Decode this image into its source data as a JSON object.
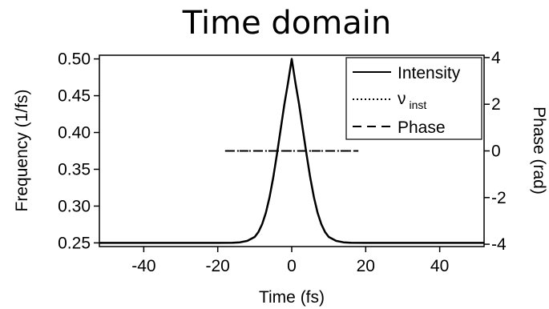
{
  "chart_data": {
    "type": "line",
    "title": "Time domain",
    "xlabel": "Time (fs)",
    "ylabel": "Frequency (1/fs)",
    "y2label": "Phase (rad)",
    "xlim": [
      -52,
      52
    ],
    "ylim": [
      0.245,
      0.505
    ],
    "y2lim": [
      -4.1,
      4.1
    ],
    "xticks": [
      -40,
      -20,
      0,
      20,
      40
    ],
    "yticks": [
      0.25,
      0.3,
      0.35,
      0.4,
      0.45,
      0.5
    ],
    "yticklabels": [
      "0.25",
      "0.30",
      "0.35",
      "0.40",
      "0.45",
      "0.50"
    ],
    "y2ticks": [
      -4,
      -2,
      0,
      2,
      4
    ],
    "grid": false,
    "legend_position": "top-right",
    "legend": [
      {
        "label": "Intensity",
        "label_sub": "",
        "style": "solid"
      },
      {
        "label": "ν",
        "label_sub": "inst",
        "style": "dotted"
      },
      {
        "label": "Phase",
        "label_sub": "",
        "style": "dashed"
      }
    ],
    "series": [
      {
        "name": "Intensity",
        "axis": "left",
        "style": "solid",
        "x": [
          -52,
          -30,
          -20,
          -16,
          -14,
          -12,
          -10,
          -9,
          -8,
          -7,
          -6,
          -5,
          -4,
          -3,
          -2,
          -1,
          0,
          1,
          2,
          3,
          4,
          5,
          6,
          7,
          8,
          9,
          10,
          12,
          14,
          16,
          20,
          30,
          52
        ],
        "y": [
          0.25,
          0.25,
          0.25,
          0.2502,
          0.2508,
          0.2527,
          0.2581,
          0.2649,
          0.2755,
          0.2908,
          0.3119,
          0.3387,
          0.3702,
          0.4045,
          0.4382,
          0.4677,
          0.5,
          0.4677,
          0.4382,
          0.4045,
          0.3702,
          0.3387,
          0.3119,
          0.2908,
          0.2755,
          0.2649,
          0.2581,
          0.2527,
          0.2508,
          0.2502,
          0.25,
          0.25,
          0.25
        ]
      },
      {
        "name": "ν inst",
        "axis": "left",
        "style": "dotted",
        "x": [
          -18,
          18
        ],
        "y": [
          0.375,
          0.375
        ]
      },
      {
        "name": "Phase",
        "axis": "right",
        "style": "dashed",
        "x": [
          -18,
          18
        ],
        "y": [
          0,
          0
        ]
      }
    ]
  }
}
